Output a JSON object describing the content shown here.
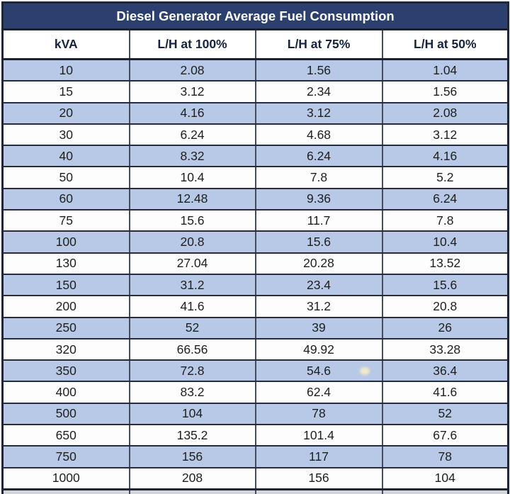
{
  "table": {
    "title": "Diesel Generator Average Fuel Consumption",
    "columns": [
      "kVA",
      "L/H at 100%",
      "L/H at 75%",
      "L/H at 50%"
    ],
    "rows": [
      [
        "10",
        "2.08",
        "1.56",
        "1.04"
      ],
      [
        "15",
        "3.12",
        "2.34",
        "1.56"
      ],
      [
        "20",
        "4.16",
        "3.12",
        "2.08"
      ],
      [
        "30",
        "6.24",
        "4.68",
        "3.12"
      ],
      [
        "40",
        "8.32",
        "6.24",
        "4.16"
      ],
      [
        "50",
        "10.4",
        "7.8",
        "5.2"
      ],
      [
        "60",
        "12.48",
        "9.36",
        "6.24"
      ],
      [
        "75",
        "15.6",
        "11.7",
        "7.8"
      ],
      [
        "100",
        "20.8",
        "15.6",
        "10.4"
      ],
      [
        "130",
        "27.04",
        "20.28",
        "13.52"
      ],
      [
        "150",
        "31.2",
        "23.4",
        "15.6"
      ],
      [
        "200",
        "41.6",
        "31.2",
        "20.8"
      ],
      [
        "250",
        "52",
        "39",
        "26"
      ],
      [
        "320",
        "66.56",
        "49.92",
        "33.28"
      ],
      [
        "350",
        "72.8",
        "54.6",
        "36.4"
      ],
      [
        "400",
        "83.2",
        "62.4",
        "41.6"
      ],
      [
        "500",
        "104",
        "78",
        "52"
      ],
      [
        "650",
        "135.2",
        "101.4",
        "67.6"
      ],
      [
        "750",
        "156",
        "117",
        "78"
      ],
      [
        "1000",
        "208",
        "156",
        "104"
      ]
    ],
    "cell_names": [
      "kva-cell",
      "lh100-cell",
      "lh75-cell",
      "lh50-cell"
    ]
  },
  "colors": {
    "title_bg": "#2b406f",
    "title_text": "#ffffff",
    "header_text": "#16233e",
    "row_blue": "#b7c9e6",
    "row_white": "#fdfdfd",
    "border": "#454c60"
  }
}
